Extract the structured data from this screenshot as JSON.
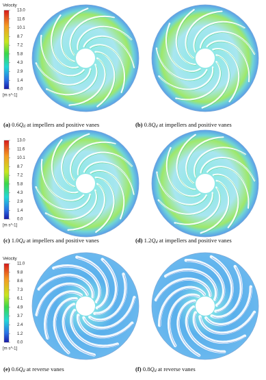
{
  "panels": [
    {
      "caption": {
        "label": "(a)",
        "pre": " 0.6",
        "q": "Q",
        "sub": "d",
        "post": " at impellers and positive vanes"
      }
    },
    {
      "caption": {
        "label": "(b)",
        "pre": " 0.8",
        "q": "Q",
        "sub": "d",
        "post": " at impellers and positive vanes"
      }
    },
    {
      "caption": {
        "label": "(c)",
        "pre": " 1.0",
        "q": "Q",
        "sub": "d",
        "post": " at impellers and positive vanes"
      }
    },
    {
      "caption": {
        "label": "(d)",
        "pre": " 1.2",
        "q": "Q",
        "sub": "d",
        "post": " at impellers and positive vanes"
      }
    },
    {
      "caption": {
        "label": "(e)",
        "pre": " 0.6",
        "q": "Q",
        "sub": "d",
        "post": " at reverse vanes"
      }
    },
    {
      "caption": {
        "label": "(f)",
        "pre": " 0.8",
        "q": "Q",
        "sub": "d",
        "post": " at reverse vanes"
      }
    }
  ],
  "colorbars": [
    {
      "title": "Velocity",
      "ticks": [
        "13.0",
        "11.6",
        "10.1",
        "8.7",
        "7.2",
        "5.8",
        "4.3",
        "2.9",
        "1.4",
        "0.0"
      ],
      "unit": "[m s^-1]"
    },
    {
      "ticks": [
        "13.0",
        "11.6",
        "10.1",
        "8.7",
        "7.2",
        "5.8",
        "4.3",
        "2.9",
        "1.4",
        "0.0"
      ],
      "unit": "[m s^-1]"
    },
    {
      "title": "Velocity",
      "ticks": [
        "11.0",
        "9.8",
        "8.6",
        "7.3",
        "6.1",
        "4.9",
        "3.7",
        "2.4",
        "1.2",
        "0.0"
      ],
      "unit": "[m s^-1]"
    }
  ]
}
